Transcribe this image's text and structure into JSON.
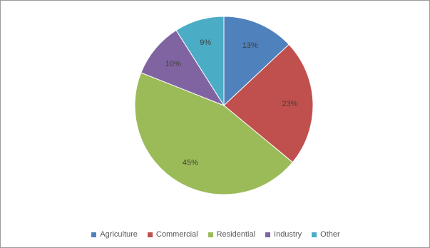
{
  "chart_data": {
    "type": "pie",
    "slices": [
      {
        "label": "Agriculture",
        "value": 13,
        "value_label": "13%",
        "color": "#4f81bd"
      },
      {
        "label": "Commercial",
        "value": 23,
        "value_label": "23%",
        "color": "#c0504d"
      },
      {
        "label": "Residential",
        "value": 45,
        "value_label": "45%",
        "color": "#9bbb59"
      },
      {
        "label": "Industry",
        "value": 10,
        "value_label": "10%",
        "color": "#8064a2"
      },
      {
        "label": "Other",
        "value": 9,
        "value_label": "9%",
        "color": "#4bacc6"
      }
    ],
    "start": "12 o'clock",
    "direction": "clockwise",
    "legend_position": "bottom"
  }
}
